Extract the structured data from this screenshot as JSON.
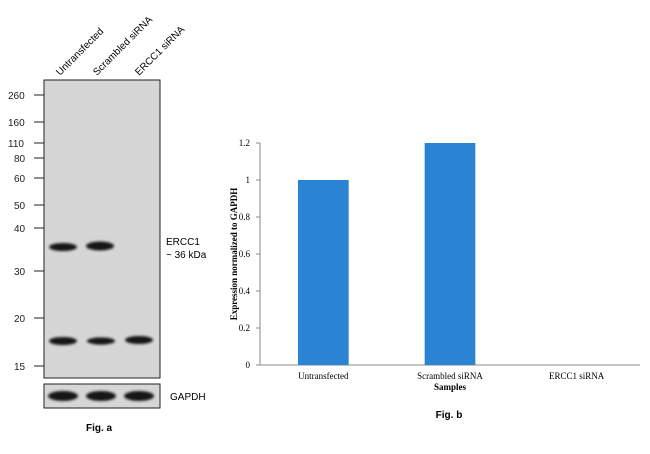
{
  "western_blot": {
    "lanes": [
      "Untransfected",
      "Scrambled siRNA",
      "ERCC1 siRNA"
    ],
    "markers": [
      "260",
      "160",
      "110",
      "80",
      "60",
      "50",
      "40",
      "30",
      "20",
      "15"
    ],
    "band_label_line1": "ERCC1",
    "band_label_line2": "~ 36 kDa",
    "loading_control_label": "GAPDH",
    "ercc1_band_present": [
      true,
      true,
      false
    ],
    "lower_band_present": [
      true,
      true,
      true
    ],
    "gapdh_band_present": [
      true,
      true,
      true
    ],
    "caption": "Fig. a"
  },
  "chart_data": {
    "type": "bar",
    "categories": [
      "Untransfected",
      "Scrambled siRNA",
      "ERCC1 siRNA"
    ],
    "values": [
      1.0,
      1.2,
      0.0
    ],
    "xlabel": "Samples",
    "ylabel": "Expression normalized to GAPDH",
    "ylim": [
      0,
      1.2
    ],
    "yticks": [
      "0",
      "0.2",
      "0.4",
      "0.6",
      "0.8",
      "1",
      "1.2"
    ],
    "bar_color": "#2b84d3",
    "grid": false,
    "caption": "Fig. b"
  }
}
